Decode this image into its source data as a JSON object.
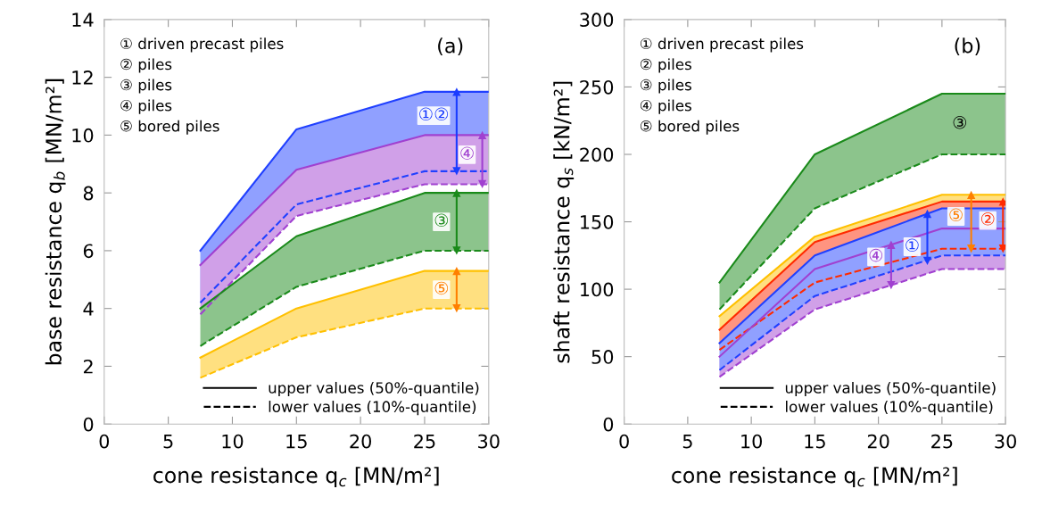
{
  "chart_data": [
    {
      "type": "line",
      "title": "(a)",
      "xlabel": "cone resistance q$_{c}$ [MN/m²]",
      "ylabel": "base resistance q$_{b}$ [MN/m²]",
      "x": [
        7.5,
        15,
        25,
        30
      ],
      "xlim": [
        0,
        30
      ],
      "xticks": [
        0,
        5,
        10,
        15,
        20,
        25,
        30
      ],
      "ylim": [
        0,
        14
      ],
      "yticks": [
        0,
        2,
        4,
        6,
        8,
        10,
        12,
        14
      ],
      "legend": "bottom right",
      "annotations": [
        "① driven precast piles\n② piles\n③ piles\n④ piles\n⑤ bored piles"
      ],
      "series": [
        {
          "color": "#2040ff",
          "values": [
            6.0,
            10.2,
            11.5,
            11.5
          ],
          "lower": [
            4.2,
            7.6,
            8.75,
            8.75
          ],
          "upper": [
            6.0,
            10.2,
            11.5,
            11.5
          ]
        },
        {
          "color": "#2040ff",
          "line_style": "dashed",
          "values": [
            4.2,
            7.6,
            8.75,
            8.75
          ]
        },
        {
          "color": "#a040d0",
          "values": [
            5.5,
            8.8,
            10.0,
            10.0
          ],
          "lower": [
            3.8,
            7.2,
            8.3,
            8.3
          ],
          "upper": [
            5.5,
            8.8,
            10.0,
            10.0
          ]
        },
        {
          "color": "#a040d0",
          "line_style": "dashed",
          "values": [
            3.8,
            7.2,
            8.3,
            8.3
          ]
        },
        {
          "color": "#1a8a1a",
          "values": [
            4.0,
            6.5,
            8.0,
            8.0
          ],
          "lower": [
            2.7,
            4.75,
            6.0,
            6.0
          ],
          "upper": [
            4.0,
            6.5,
            8.0,
            8.0
          ]
        },
        {
          "color": "#1a8a1a",
          "line_style": "dashed",
          "values": [
            2.7,
            4.75,
            6.0,
            6.0
          ]
        },
        {
          "color": "#ffc000",
          "values": [
            2.3,
            4.0,
            5.3,
            5.3
          ],
          "lower": [
            1.6,
            3.0,
            4.0,
            4.0
          ],
          "upper": [
            2.3,
            4.0,
            5.3,
            5.3
          ]
        },
        {
          "color": "#ffc000",
          "line_style": "dashed",
          "values": [
            1.6,
            3.0,
            4.0,
            4.0
          ]
        },
        {
          "name": "①②",
          "marker": "triangle",
          "color": "#1a3cff",
          "x": [
            27.5,
            27.5
          ],
          "values": [
            8.75,
            11.5
          ]
        },
        {
          "name": "④",
          "marker": "triangle",
          "color": "#a040d0",
          "x": [
            29.5,
            29.5
          ],
          "values": [
            8.3,
            10.0
          ]
        },
        {
          "name": "③",
          "marker": "triangle",
          "color": "#1a8a1a",
          "x": [
            27.5,
            27.5
          ],
          "values": [
            6.0,
            8.0
          ]
        },
        {
          "name": "⑤",
          "marker": "triangle",
          "color": "#ff7f00",
          "x": [
            27.5,
            27.5
          ],
          "values": [
            4.0,
            5.3
          ]
        },
        {
          "name": "upper values (50%-quantile)",
          "color": "#000000",
          "line_style": "solid",
          "values": [
            null,
            null,
            null,
            null
          ]
        },
        {
          "name": "lower values (10%-quantile)",
          "color": "#000000",
          "line_style": "dashed",
          "values": [
            null,
            null,
            null,
            null
          ]
        }
      ]
    },
    {
      "type": "line",
      "title": "(b)",
      "xlabel": "cone resistance q$_{c}$ [MN/m²]",
      "ylabel": "shaft resistance q$_{s}$ [kN/m²]",
      "x": [
        7.5,
        15,
        25,
        30
      ],
      "xlim": [
        0,
        30
      ],
      "xticks": [
        0,
        5,
        10,
        15,
        20,
        25,
        30
      ],
      "ylim": [
        0,
        300
      ],
      "yticks": [
        0,
        50,
        100,
        150,
        200,
        250,
        300
      ],
      "legend": "bottom right",
      "annotations": [
        "① driven precast piles\n② piles\n③ piles\n④ piles\n⑤ bored piles"
      ],
      "series": [
        {
          "name": "③",
          "color": "#1a8a1a",
          "values": [
            105,
            200,
            245,
            245
          ],
          "lower": [
            85,
            160,
            200,
            200
          ],
          "upper": [
            105,
            200,
            245,
            245
          ]
        },
        {
          "color": "#1a8a1a",
          "line_style": "dashed",
          "values": [
            85,
            160,
            200,
            200
          ]
        },
        {
          "color": "#ffc000",
          "values": [
            80,
            139,
            170,
            170
          ],
          "lower": [
            55,
            105,
            130,
            130
          ],
          "upper": [
            80,
            139,
            170,
            170
          ]
        },
        {
          "color": "#ff2a00",
          "values": [
            70,
            135,
            165,
            165
          ],
          "lower": [
            55,
            105,
            130,
            130
          ],
          "upper": [
            70,
            135,
            165,
            165
          ]
        },
        {
          "color": "#ff2a00",
          "line_style": "dashed",
          "values": [
            55,
            105,
            130,
            130
          ]
        },
        {
          "color": "#a040d0",
          "values": [
            50,
            115,
            145,
            145
          ],
          "lower": [
            35,
            85,
            115,
            115
          ],
          "upper": [
            50,
            115,
            145,
            145
          ]
        },
        {
          "color": "#a040d0",
          "line_style": "dashed",
          "values": [
            35,
            85,
            115,
            115
          ]
        },
        {
          "color": "#2040ff",
          "values": [
            60,
            125,
            160,
            160
          ],
          "lower": [
            40,
            95,
            125,
            125
          ],
          "upper": [
            60,
            125,
            160,
            160
          ]
        },
        {
          "color": "#2040ff",
          "line_style": "dashed",
          "values": [
            40,
            95,
            125,
            125
          ]
        },
        {
          "name": "①",
          "marker": "triangle",
          "color": "#1a3cff",
          "x": [
            23.85,
            23.85
          ],
          "values": [
            121,
            156
          ]
        },
        {
          "name": "⑤",
          "marker": "triangle",
          "color": "#ff7f00",
          "x": [
            27.3,
            27.3
          ],
          "values": [
            130,
            170
          ]
        },
        {
          "name": "②",
          "marker": "triangle",
          "color": "#ff2a00",
          "x": [
            29.8,
            29.8
          ],
          "values": [
            130,
            165
          ]
        },
        {
          "name": "④",
          "marker": "triangle",
          "color": "#a040d0",
          "x": [
            21.0,
            21.0
          ],
          "values": [
            103,
            133
          ]
        },
        {
          "name": "upper values (50%-quantile)",
          "color": "#000000",
          "line_style": "solid",
          "values": [
            null,
            null,
            null,
            null
          ]
        },
        {
          "name": "lower values (10%-quantile)",
          "color": "#000000",
          "line_style": "dashed",
          "values": [
            null,
            null,
            null,
            null
          ]
        }
      ]
    }
  ]
}
